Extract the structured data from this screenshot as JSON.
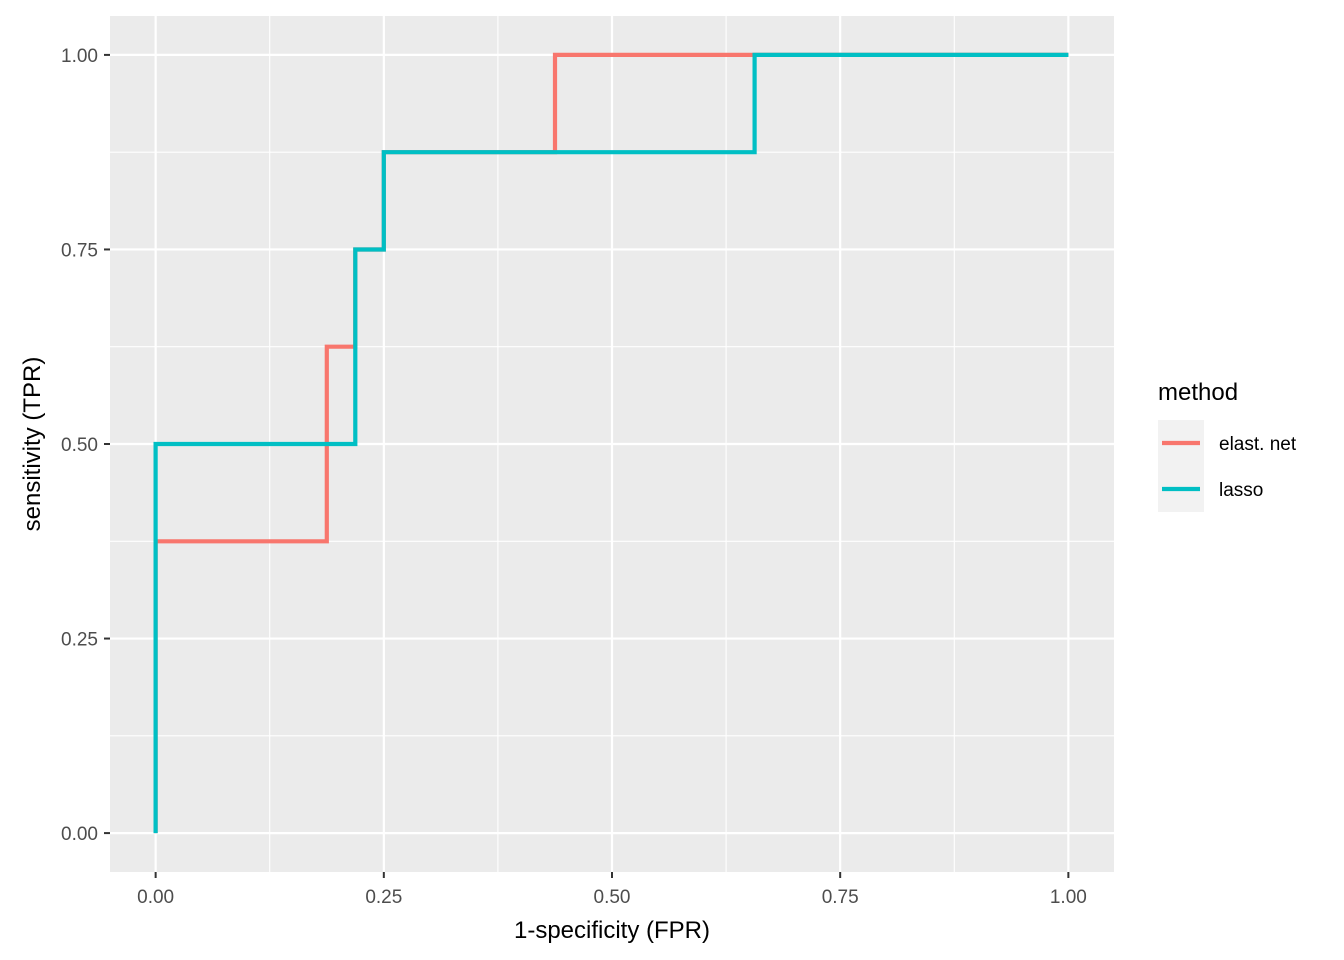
{
  "chart_data": {
    "type": "line",
    "xlabel": "1-specificity (FPR)",
    "ylabel": "sensitivity (TPR)",
    "xlim": [
      -0.05,
      1.05
    ],
    "ylim": [
      -0.05,
      1.05
    ],
    "x_ticks": [
      "0.00",
      "0.25",
      "0.50",
      "0.75",
      "1.00"
    ],
    "y_ticks": [
      "0.00",
      "0.25",
      "0.50",
      "0.75",
      "1.00"
    ],
    "grid": true,
    "legend_position": "right",
    "legend_title": "method",
    "series": [
      {
        "name": "elast. net",
        "color": "#F8766D",
        "step": true,
        "x": [
          0,
          0,
          0.1875,
          0.1875,
          0.21875,
          0.21875,
          0.25,
          0.25,
          0.4375,
          0.4375,
          1.0
        ],
        "y": [
          0,
          0.375,
          0.375,
          0.625,
          0.625,
          0.75,
          0.75,
          0.875,
          0.875,
          1.0,
          1.0
        ]
      },
      {
        "name": "lasso",
        "color": "#00BFC4",
        "step": true,
        "x": [
          0,
          0,
          0.21875,
          0.21875,
          0.25,
          0.25,
          0.65625,
          0.65625,
          1.0
        ],
        "y": [
          0,
          0.5,
          0.5,
          0.75,
          0.75,
          0.875,
          0.875,
          1.0,
          1.0
        ]
      }
    ]
  }
}
